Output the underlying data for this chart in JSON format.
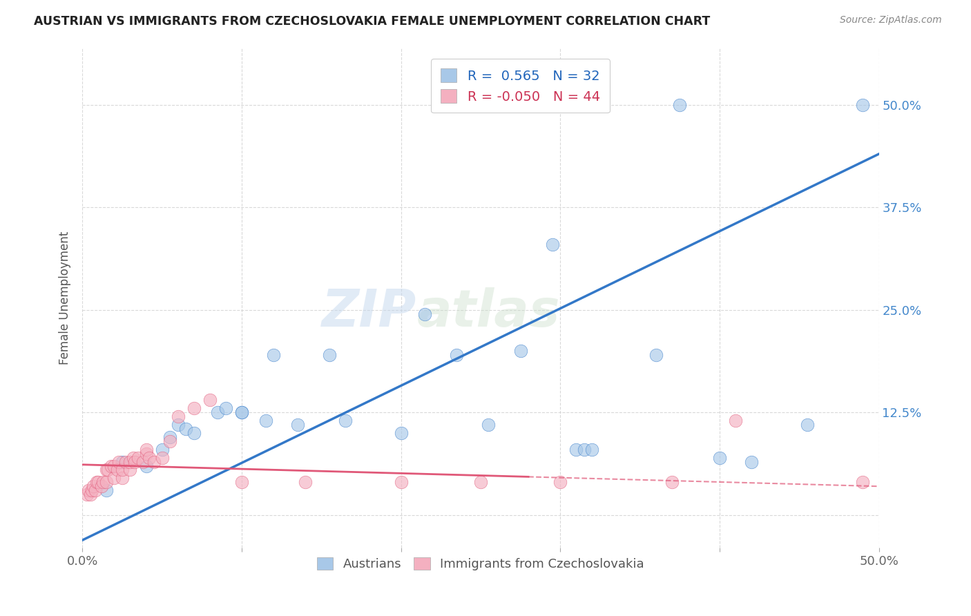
{
  "title": "AUSTRIAN VS IMMIGRANTS FROM CZECHOSLOVAKIA FEMALE UNEMPLOYMENT CORRELATION CHART",
  "source": "Source: ZipAtlas.com",
  "ylabel": "Female Unemployment",
  "xlim": [
    0.0,
    0.5
  ],
  "ylim": [
    -0.04,
    0.57
  ],
  "ytick_vals": [
    0.0,
    0.125,
    0.25,
    0.375,
    0.5
  ],
  "ytick_labels": [
    "",
    "12.5%",
    "25.0%",
    "37.5%",
    "50.0%"
  ],
  "xtick_vals": [
    0.0,
    0.1,
    0.2,
    0.3,
    0.4,
    0.5
  ],
  "xtick_labels": [
    "0.0%",
    "",
    "",
    "",
    "",
    "50.0%"
  ],
  "legend_r_blue": " 0.565",
  "legend_n_blue": "32",
  "legend_r_pink": "-0.050",
  "legend_n_pink": "44",
  "blue_color": "#a8c8e8",
  "pink_color": "#f4b0c0",
  "blue_line_color": "#3378c8",
  "pink_line_color": "#e05878",
  "watermark": "ZIPatlas",
  "austrians_x": [
    0.015,
    0.025,
    0.04,
    0.05,
    0.055,
    0.06,
    0.065,
    0.07,
    0.085,
    0.09,
    0.1,
    0.1,
    0.115,
    0.12,
    0.135,
    0.155,
    0.165,
    0.2,
    0.215,
    0.235,
    0.255,
    0.275,
    0.295,
    0.31,
    0.315,
    0.32,
    0.36,
    0.375,
    0.4,
    0.42,
    0.455,
    0.49
  ],
  "austrians_y": [
    0.03,
    0.065,
    0.06,
    0.08,
    0.095,
    0.11,
    0.105,
    0.1,
    0.125,
    0.13,
    0.125,
    0.125,
    0.115,
    0.195,
    0.11,
    0.195,
    0.115,
    0.1,
    0.245,
    0.195,
    0.11,
    0.2,
    0.33,
    0.08,
    0.08,
    0.08,
    0.195,
    0.5,
    0.07,
    0.065,
    0.11,
    0.5
  ],
  "czech_x": [
    0.003,
    0.004,
    0.005,
    0.006,
    0.007,
    0.008,
    0.009,
    0.01,
    0.012,
    0.013,
    0.015,
    0.015,
    0.016,
    0.018,
    0.02,
    0.02,
    0.022,
    0.023,
    0.025,
    0.025,
    0.027,
    0.03,
    0.03,
    0.032,
    0.033,
    0.035,
    0.038,
    0.04,
    0.04,
    0.042,
    0.045,
    0.05,
    0.055,
    0.06,
    0.07,
    0.08,
    0.1,
    0.14,
    0.2,
    0.25,
    0.3,
    0.37,
    0.41,
    0.49
  ],
  "czech_y": [
    0.025,
    0.03,
    0.025,
    0.03,
    0.035,
    0.03,
    0.04,
    0.04,
    0.035,
    0.04,
    0.04,
    0.055,
    0.055,
    0.06,
    0.045,
    0.06,
    0.055,
    0.065,
    0.045,
    0.055,
    0.065,
    0.055,
    0.065,
    0.07,
    0.065,
    0.07,
    0.065,
    0.075,
    0.08,
    0.07,
    0.065,
    0.07,
    0.09,
    0.12,
    0.13,
    0.14,
    0.04,
    0.04,
    0.04,
    0.04,
    0.04,
    0.04,
    0.115,
    0.04
  ],
  "background_color": "#ffffff",
  "grid_color": "#d0d0d0",
  "blue_line_x0": -0.01,
  "blue_line_x1": 0.5,
  "blue_line_y0": -0.04,
  "blue_line_y1": 0.44,
  "pink_line_x0": -0.01,
  "pink_line_x1": 0.5,
  "pink_line_y0": 0.062,
  "pink_line_y1": 0.035
}
